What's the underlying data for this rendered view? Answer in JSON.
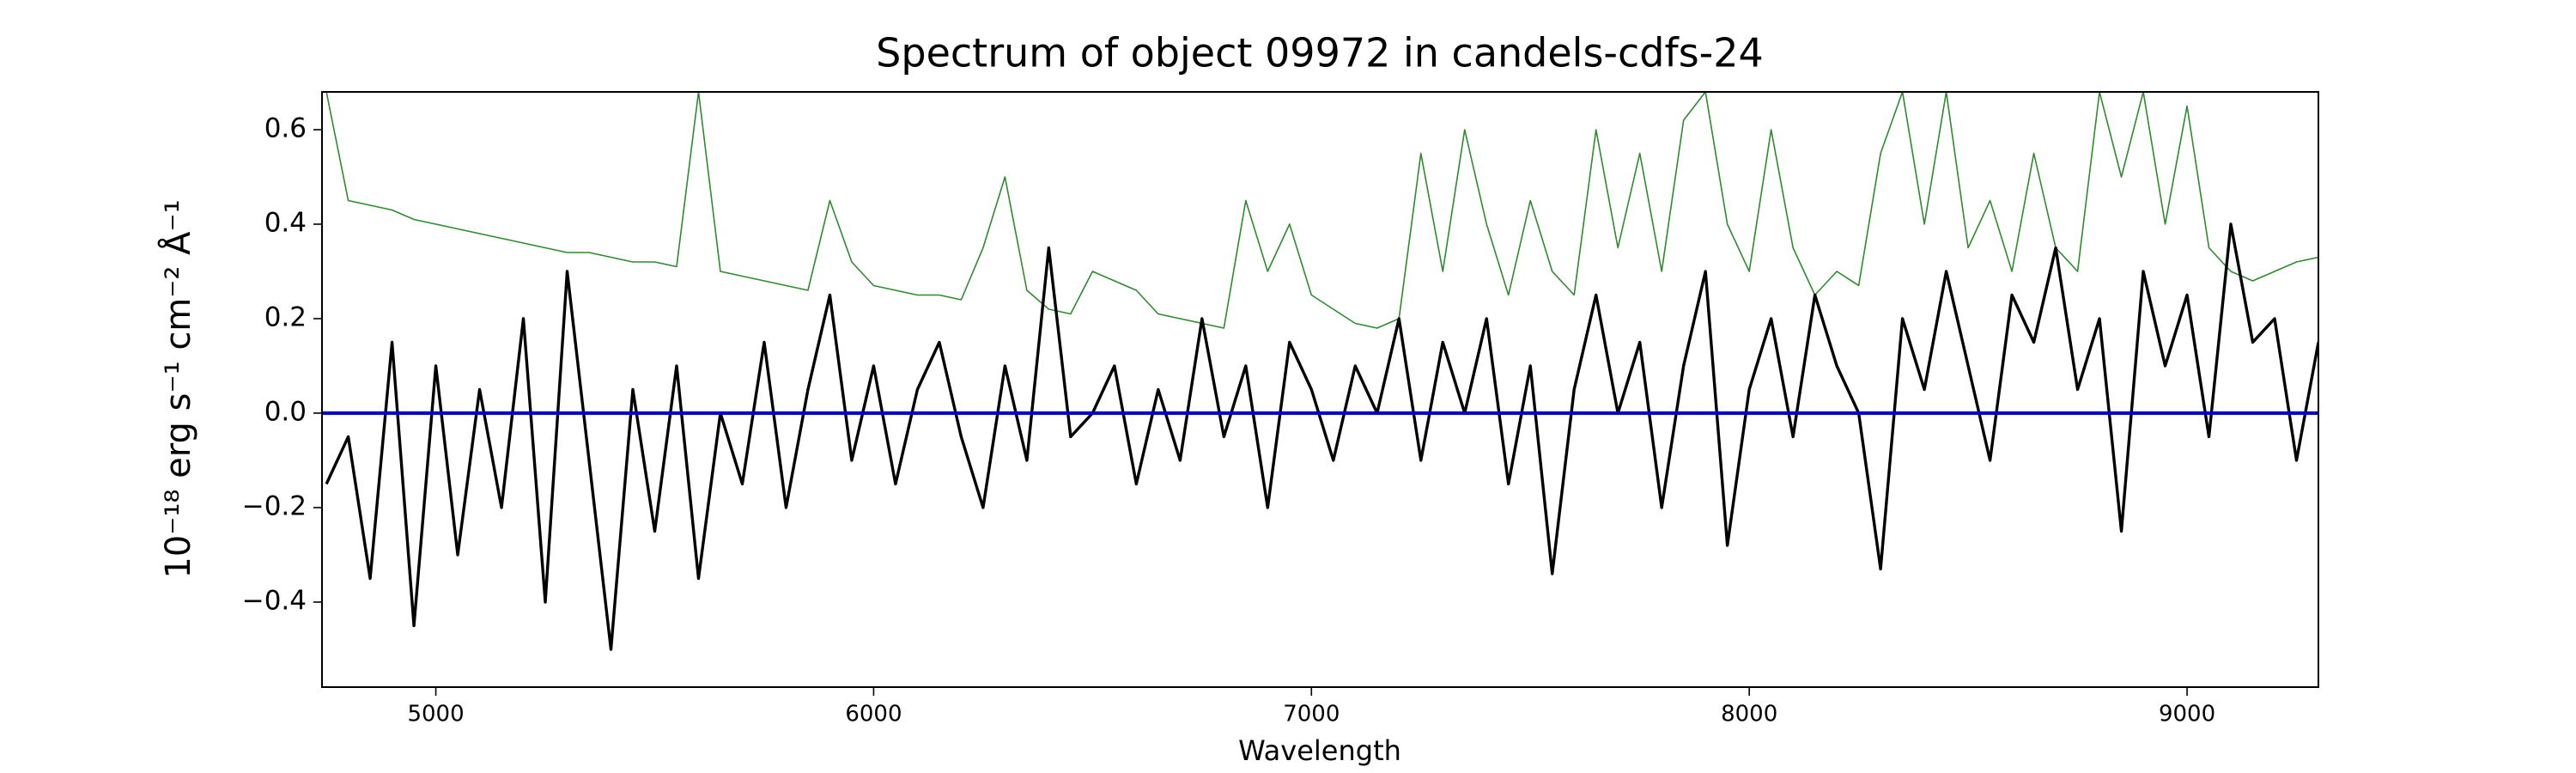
{
  "chart_data": {
    "type": "line",
    "title": "Spectrum of object 09972 in candels-cdfs-24",
    "xlabel": "Wavelength",
    "ylabel": "10⁻¹⁸ erg s⁻¹ cm⁻² Å⁻¹",
    "x": [
      4750,
      4800,
      4850,
      4900,
      4950,
      5000,
      5050,
      5100,
      5150,
      5200,
      5250,
      5300,
      5350,
      5400,
      5450,
      5500,
      5550,
      5600,
      5650,
      5700,
      5750,
      5800,
      5850,
      5900,
      5950,
      6000,
      6050,
      6100,
      6150,
      6200,
      6250,
      6300,
      6350,
      6400,
      6450,
      6500,
      6550,
      6600,
      6650,
      6700,
      6750,
      6800,
      6850,
      6900,
      6950,
      7000,
      7050,
      7100,
      7150,
      7200,
      7250,
      7300,
      7350,
      7400,
      7450,
      7500,
      7550,
      7600,
      7650,
      7700,
      7750,
      7800,
      7850,
      7900,
      7950,
      8000,
      8050,
      8100,
      8150,
      8200,
      8250,
      8300,
      8350,
      8400,
      8450,
      8500,
      8550,
      8600,
      8650,
      8700,
      8750,
      8800,
      8850,
      8900,
      8950,
      9000,
      9050,
      9100,
      9150,
      9200,
      9250,
      9300
    ],
    "series": [
      {
        "color": "#2e8b2e",
        "values": [
          0.68,
          0.45,
          0.44,
          0.43,
          0.41,
          0.4,
          0.39,
          0.38,
          0.37,
          0.36,
          0.35,
          0.34,
          0.34,
          0.33,
          0.32,
          0.32,
          0.31,
          0.68,
          0.3,
          0.29,
          0.28,
          0.27,
          0.26,
          0.45,
          0.32,
          0.27,
          0.26,
          0.25,
          0.25,
          0.24,
          0.35,
          0.5,
          0.26,
          0.22,
          0.21,
          0.3,
          0.28,
          0.26,
          0.21,
          0.2,
          0.19,
          0.18,
          0.45,
          0.3,
          0.4,
          0.25,
          0.22,
          0.19,
          0.18,
          0.2,
          0.55,
          0.3,
          0.6,
          0.4,
          0.25,
          0.45,
          0.3,
          0.25,
          0.6,
          0.35,
          0.55,
          0.3,
          0.62,
          0.68,
          0.4,
          0.3,
          0.6,
          0.35,
          0.25,
          0.3,
          0.27,
          0.55,
          0.68,
          0.4,
          0.68,
          0.35,
          0.45,
          0.3,
          0.55,
          0.35,
          0.3,
          0.68,
          0.5,
          0.68,
          0.4,
          0.65,
          0.35,
          0.3,
          0.28,
          0.3,
          0.32,
          0.33
        ]
      },
      {
        "color": "#000000",
        "values": [
          -0.15,
          -0.05,
          -0.35,
          0.15,
          -0.45,
          0.1,
          -0.3,
          0.05,
          -0.2,
          0.2,
          -0.4,
          0.3,
          -0.1,
          -0.5,
          0.05,
          -0.25,
          0.1,
          -0.35,
          0.0,
          -0.15,
          0.15,
          -0.2,
          0.05,
          0.25,
          -0.1,
          0.1,
          -0.15,
          0.05,
          0.15,
          -0.05,
          -0.2,
          0.1,
          -0.1,
          0.35,
          -0.05,
          0.0,
          0.1,
          -0.15,
          0.05,
          -0.1,
          0.2,
          -0.05,
          0.1,
          -0.2,
          0.15,
          0.05,
          -0.1,
          0.1,
          0.0,
          0.2,
          -0.1,
          0.15,
          0.0,
          0.2,
          -0.15,
          0.1,
          -0.34,
          0.05,
          0.25,
          0.0,
          0.15,
          -0.2,
          0.1,
          0.3,
          -0.28,
          0.05,
          0.2,
          -0.05,
          0.25,
          0.1,
          0.0,
          -0.33,
          0.2,
          0.05,
          0.3,
          0.1,
          -0.1,
          0.25,
          0.15,
          0.35,
          0.05,
          0.2,
          -0.25,
          0.3,
          0.1,
          0.25,
          -0.05,
          0.4,
          0.15,
          0.2,
          -0.1,
          0.15
        ]
      }
    ],
    "hline": {
      "value": 0,
      "color": "#0000cc"
    },
    "xlim": [
      4740,
      9300
    ],
    "xticks": [
      5000,
      6000,
      7000,
      8000,
      9000
    ],
    "ylim": [
      -0.58,
      0.68
    ],
    "yticks": [
      {
        "value": -0.4,
        "label": "−0.4"
      },
      {
        "value": -0.2,
        "label": "−0.2"
      },
      {
        "value": 0,
        "label": "0.0"
      },
      0.2,
      0.4,
      0.6
    ]
  }
}
